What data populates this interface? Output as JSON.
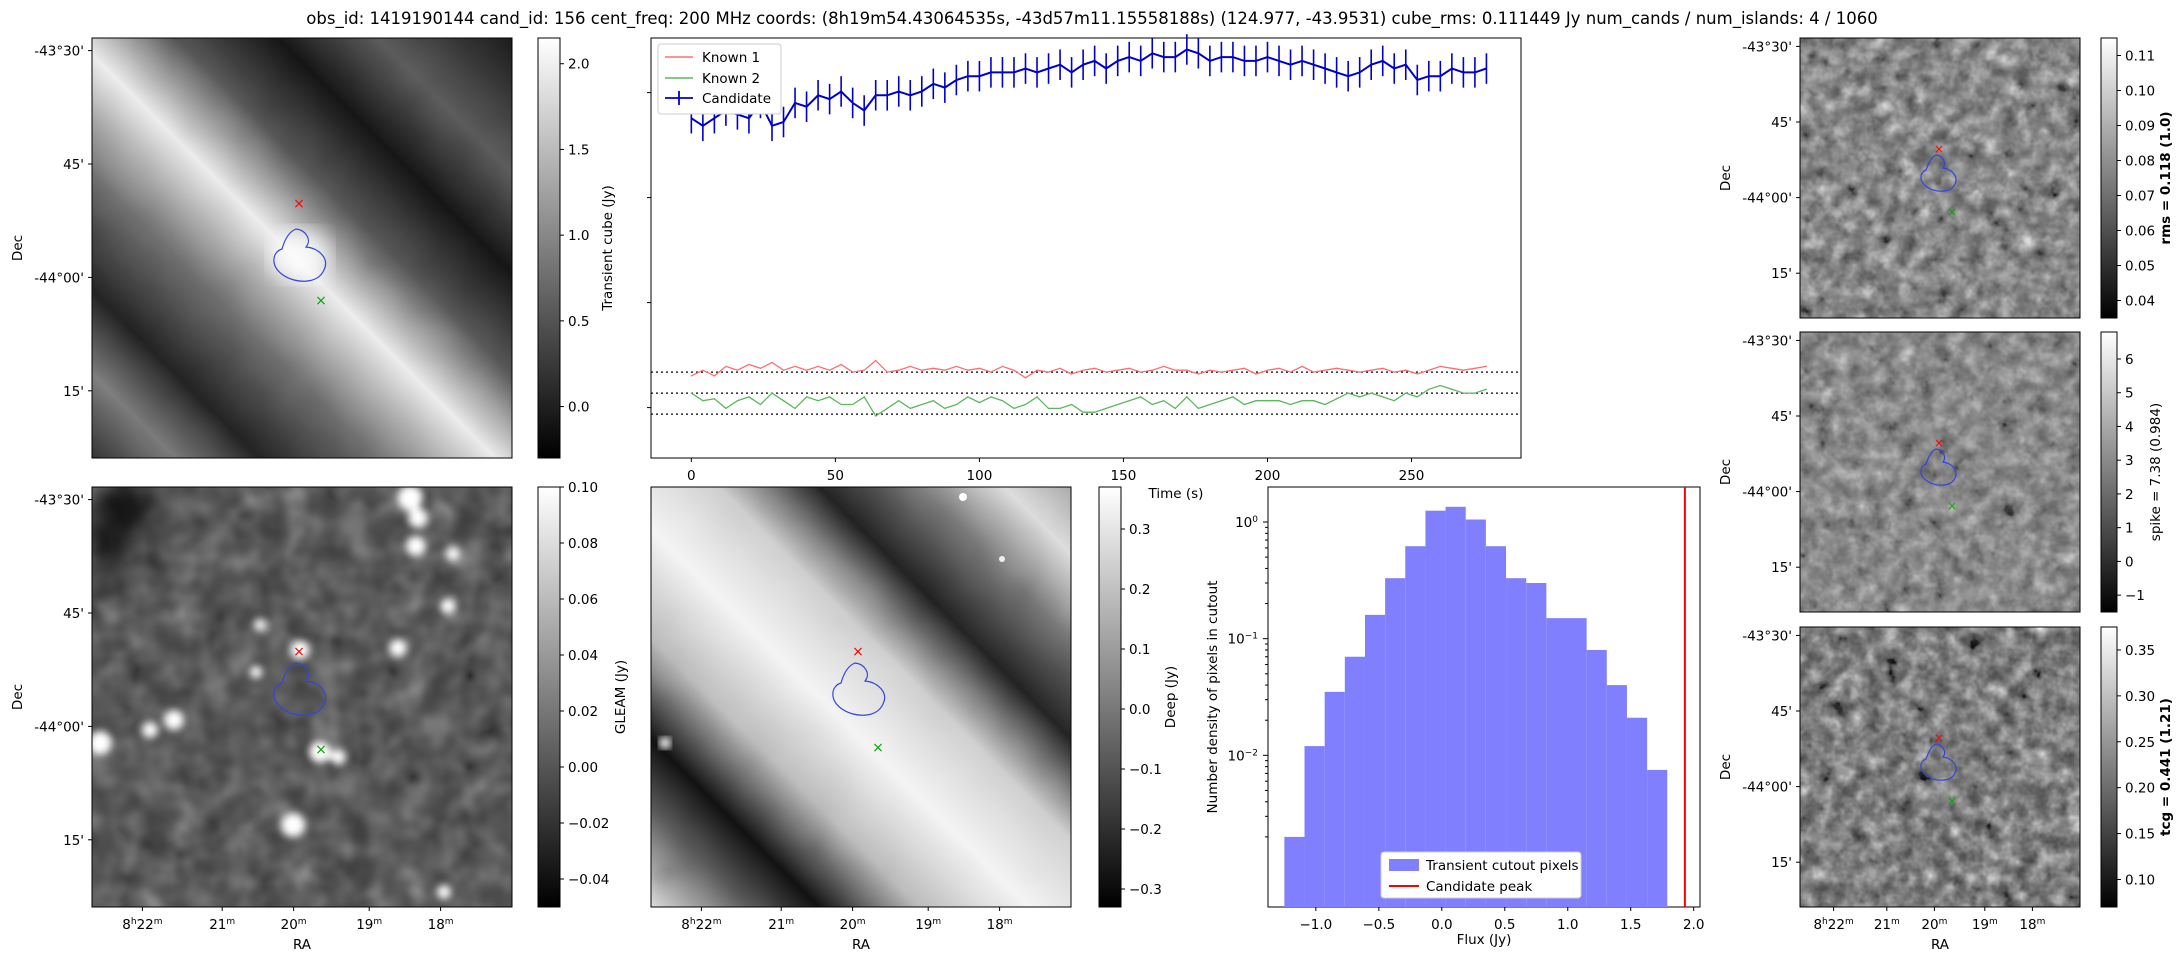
{
  "figure_title": "obs_id: 1419190144 cand_id: 156 cent_freq: 200 MHz coords: (8h19m54.43064535s, -43d57m11.15558188s) (124.977, -43.9531) cube_rms: 0.111449 Jy num_cands / num_islands: 4 / 1060",
  "colors": {
    "candidate": "#0000cc",
    "known1": "#ff6e6e",
    "known2": "#5cb85c",
    "marker_red": "#ff0000",
    "marker_green": "#00aa00",
    "hist": "#8080ff",
    "peak": "#ff0000"
  },
  "sky_axes": {
    "dec_ticks": [
      "-43°30'",
      "45'",
      "-44°00'",
      "15'"
    ],
    "ra_ticks": [
      {
        "h": "8",
        "hsup": "h",
        "m": "22",
        "msup": "m"
      },
      {
        "h": "",
        "hsup": "",
        "m": "21",
        "msup": "m"
      },
      {
        "h": "",
        "hsup": "",
        "m": "20",
        "msup": "m"
      },
      {
        "h": "",
        "hsup": "",
        "m": "19",
        "msup": "m"
      },
      {
        "h": "",
        "hsup": "",
        "m": "18",
        "msup": "m"
      }
    ],
    "xlabel": "RA",
    "ylabel": "Dec"
  },
  "panels": {
    "transient": {
      "cbar_label": "Transient cube (Jy)",
      "cbar_ticks": [
        "2.0",
        "1.5",
        "1.0",
        "0.5",
        "0.0"
      ],
      "cbar_range": [
        -0.3,
        2.15
      ],
      "tick_values": [
        2.0,
        1.5,
        1.0,
        0.5,
        0.0
      ]
    },
    "deep_left": {
      "cbar_label": "",
      "cbar_ticks": [
        "0.10",
        "0.08",
        "0.06",
        "0.04",
        "0.02",
        "0.00",
        "−0.02",
        "−0.04"
      ],
      "cbar_range": [
        -0.05,
        0.1
      ],
      "tick_values": [
        0.1,
        0.08,
        0.06,
        0.04,
        0.02,
        0.0,
        -0.02,
        -0.04
      ]
    },
    "gleam": {
      "cbar_label": "GLEAM (Jy)"
    },
    "deep": {
      "cbar_label": "Deep (Jy)",
      "cbar_ticks": [
        "0.3",
        "0.2",
        "0.1",
        "0.0",
        "−0.1",
        "−0.2",
        "−0.3"
      ],
      "cbar_range": [
        -0.33,
        0.37
      ],
      "tick_values": [
        0.3,
        0.2,
        0.1,
        0.0,
        -0.1,
        -0.2,
        -0.3
      ]
    },
    "rms": {
      "cbar_label": "rms = 0.118 (1.0)",
      "cbar_ticks": [
        "0.11",
        "0.10",
        "0.09",
        "0.08",
        "0.07",
        "0.06",
        "0.05",
        "0.04"
      ],
      "cbar_range": [
        0.035,
        0.115
      ],
      "tick_values": [
        0.11,
        0.1,
        0.09,
        0.08,
        0.07,
        0.06,
        0.05,
        0.04
      ]
    },
    "spike": {
      "cbar_label": "spike = 7.38 (0.984)",
      "cbar_ticks": [
        "6",
        "5",
        "4",
        "3",
        "2",
        "1",
        "0",
        "−1"
      ],
      "cbar_range": [
        -1.5,
        6.8
      ],
      "tick_values": [
        6,
        5,
        4,
        3,
        2,
        1,
        0,
        -1
      ]
    },
    "tcg": {
      "cbar_label": "tcg = 0.441 (1.21)",
      "cbar_ticks": [
        "0.35",
        "0.30",
        "0.25",
        "0.20",
        "0.15",
        "0.10"
      ],
      "cbar_range": [
        0.07,
        0.375
      ],
      "tick_values": [
        0.35,
        0.3,
        0.25,
        0.2,
        0.15,
        0.1
      ]
    }
  },
  "chart_data": [
    {
      "type": "line",
      "title": "",
      "xlabel": "Time (s)",
      "ylabel": "",
      "xlim": [
        -14,
        288
      ],
      "x_ticks": [
        0,
        50,
        100,
        150,
        200,
        250
      ],
      "x_tick_labels": [
        "0",
        "50",
        "100",
        "150",
        "200",
        "250"
      ],
      "ylim": [
        -2.6,
        8.4
      ],
      "legend": [
        "Known 1",
        "Known 2",
        "Candidate"
      ],
      "legend_position": "top-left",
      "hlines": [
        -1.45,
        -0.9,
        -0.35
      ],
      "errorbar": 0.4,
      "x": [
        0,
        4,
        8,
        12,
        16,
        20,
        24,
        28,
        32,
        36,
        40,
        44,
        48,
        52,
        56,
        60,
        64,
        68,
        72,
        76,
        80,
        84,
        88,
        92,
        96,
        100,
        104,
        108,
        112,
        116,
        120,
        124,
        128,
        132,
        136,
        140,
        144,
        148,
        152,
        156,
        160,
        164,
        168,
        172,
        176,
        180,
        184,
        188,
        192,
        196,
        200,
        204,
        208,
        212,
        216,
        220,
        224,
        228,
        232,
        236,
        240,
        244,
        248,
        252,
        256,
        260,
        264,
        268,
        272,
        276
      ],
      "series": [
        {
          "name": "Candidate",
          "values": [
            6.3,
            6.1,
            6.3,
            6.5,
            6.4,
            6.3,
            6.7,
            6.1,
            6.2,
            6.7,
            6.6,
            6.9,
            6.8,
            7.0,
            6.7,
            6.5,
            6.9,
            6.9,
            7.0,
            6.9,
            7.0,
            7.2,
            7.1,
            7.3,
            7.4,
            7.4,
            7.5,
            7.5,
            7.5,
            7.6,
            7.5,
            7.6,
            7.7,
            7.5,
            7.7,
            7.8,
            7.6,
            7.8,
            7.9,
            7.8,
            8.0,
            7.9,
            7.9,
            8.1,
            8.0,
            7.8,
            7.9,
            7.9,
            7.8,
            7.8,
            7.9,
            7.8,
            7.7,
            7.8,
            7.7,
            7.6,
            7.5,
            7.4,
            7.5,
            7.7,
            7.8,
            7.6,
            7.7,
            7.3,
            7.4,
            7.4,
            7.6,
            7.5,
            7.5,
            7.6
          ]
        },
        {
          "name": "Known 1",
          "values": [
            -0.45,
            -0.3,
            -0.45,
            -0.2,
            -0.3,
            -0.15,
            -0.25,
            -0.1,
            -0.3,
            -0.2,
            -0.3,
            -0.2,
            -0.3,
            -0.15,
            -0.35,
            -0.3,
            -0.05,
            -0.35,
            -0.3,
            -0.2,
            -0.3,
            -0.25,
            -0.3,
            -0.2,
            -0.3,
            -0.25,
            -0.35,
            -0.2,
            -0.3,
            -0.5,
            -0.3,
            -0.35,
            -0.25,
            -0.4,
            -0.3,
            -0.25,
            -0.35,
            -0.3,
            -0.25,
            -0.35,
            -0.3,
            -0.2,
            -0.3,
            -0.3,
            -0.4,
            -0.3,
            -0.35,
            -0.3,
            -0.25,
            -0.4,
            -0.3,
            -0.25,
            -0.35,
            -0.2,
            -0.35,
            -0.3,
            -0.25,
            -0.3,
            -0.35,
            -0.3,
            -0.25,
            -0.35,
            -0.3,
            -0.4,
            -0.3,
            -0.2,
            -0.25,
            -0.3,
            -0.25,
            -0.2
          ]
        },
        {
          "name": "Known 2",
          "values": [
            -0.9,
            -1.1,
            -1.05,
            -1.3,
            -1.1,
            -1.0,
            -1.2,
            -0.9,
            -1.1,
            -1.3,
            -1.0,
            -1.1,
            -1.0,
            -1.2,
            -1.2,
            -1.0,
            -1.5,
            -1.3,
            -1.1,
            -1.3,
            -1.2,
            -1.1,
            -1.3,
            -1.2,
            -1.0,
            -1.15,
            -1.0,
            -1.1,
            -1.3,
            -1.2,
            -1.0,
            -1.3,
            -1.3,
            -1.2,
            -1.4,
            -1.4,
            -1.3,
            -1.2,
            -1.1,
            -1.0,
            -1.2,
            -1.1,
            -1.3,
            -1.0,
            -1.3,
            -1.2,
            -1.1,
            -1.0,
            -1.2,
            -1.1,
            -1.1,
            -1.1,
            -1.2,
            -1.1,
            -1.1,
            -1.2,
            -1.05,
            -0.9,
            -1.0,
            -0.9,
            -1.0,
            -1.1,
            -0.9,
            -1.0,
            -0.8,
            -0.7,
            -0.8,
            -0.9,
            -0.9,
            -0.8
          ]
        }
      ]
    },
    {
      "type": "bar",
      "title": "",
      "xlabel": "Flux (Jy)",
      "ylabel": "Number density of pixels in cutout",
      "xscale": "linear",
      "yscale": "log",
      "xlim": [
        -1.38,
        2.05
      ],
      "ylim_log10": [
        -3.3,
        0.3
      ],
      "x_ticks": [
        -1.0,
        -0.5,
        0.0,
        0.5,
        1.0,
        1.5,
        2.0
      ],
      "x_tick_labels": [
        "−1.0",
        "−0.5",
        "0.0",
        "0.5",
        "1.0",
        "1.5",
        "2.0"
      ],
      "y_ticks_log10": [
        0,
        -1,
        -2
      ],
      "bin_edges": [
        -1.25,
        -1.09,
        -0.93,
        -0.77,
        -0.61,
        -0.45,
        -0.29,
        -0.13,
        0.03,
        0.19,
        0.35,
        0.51,
        0.67,
        0.83,
        0.99,
        1.15,
        1.31,
        1.47,
        1.63,
        1.79
      ],
      "density": [
        0.002,
        0.012,
        0.035,
        0.07,
        0.16,
        0.33,
        0.62,
        1.25,
        1.35,
        1.05,
        0.62,
        0.33,
        0.3,
        0.15,
        0.15,
        0.08,
        0.04,
        0.021,
        0.0075
      ],
      "peak": 1.93,
      "legend": [
        "Transient cutout pixels",
        "Candidate peak"
      ],
      "legend_position": "lower-center"
    }
  ]
}
